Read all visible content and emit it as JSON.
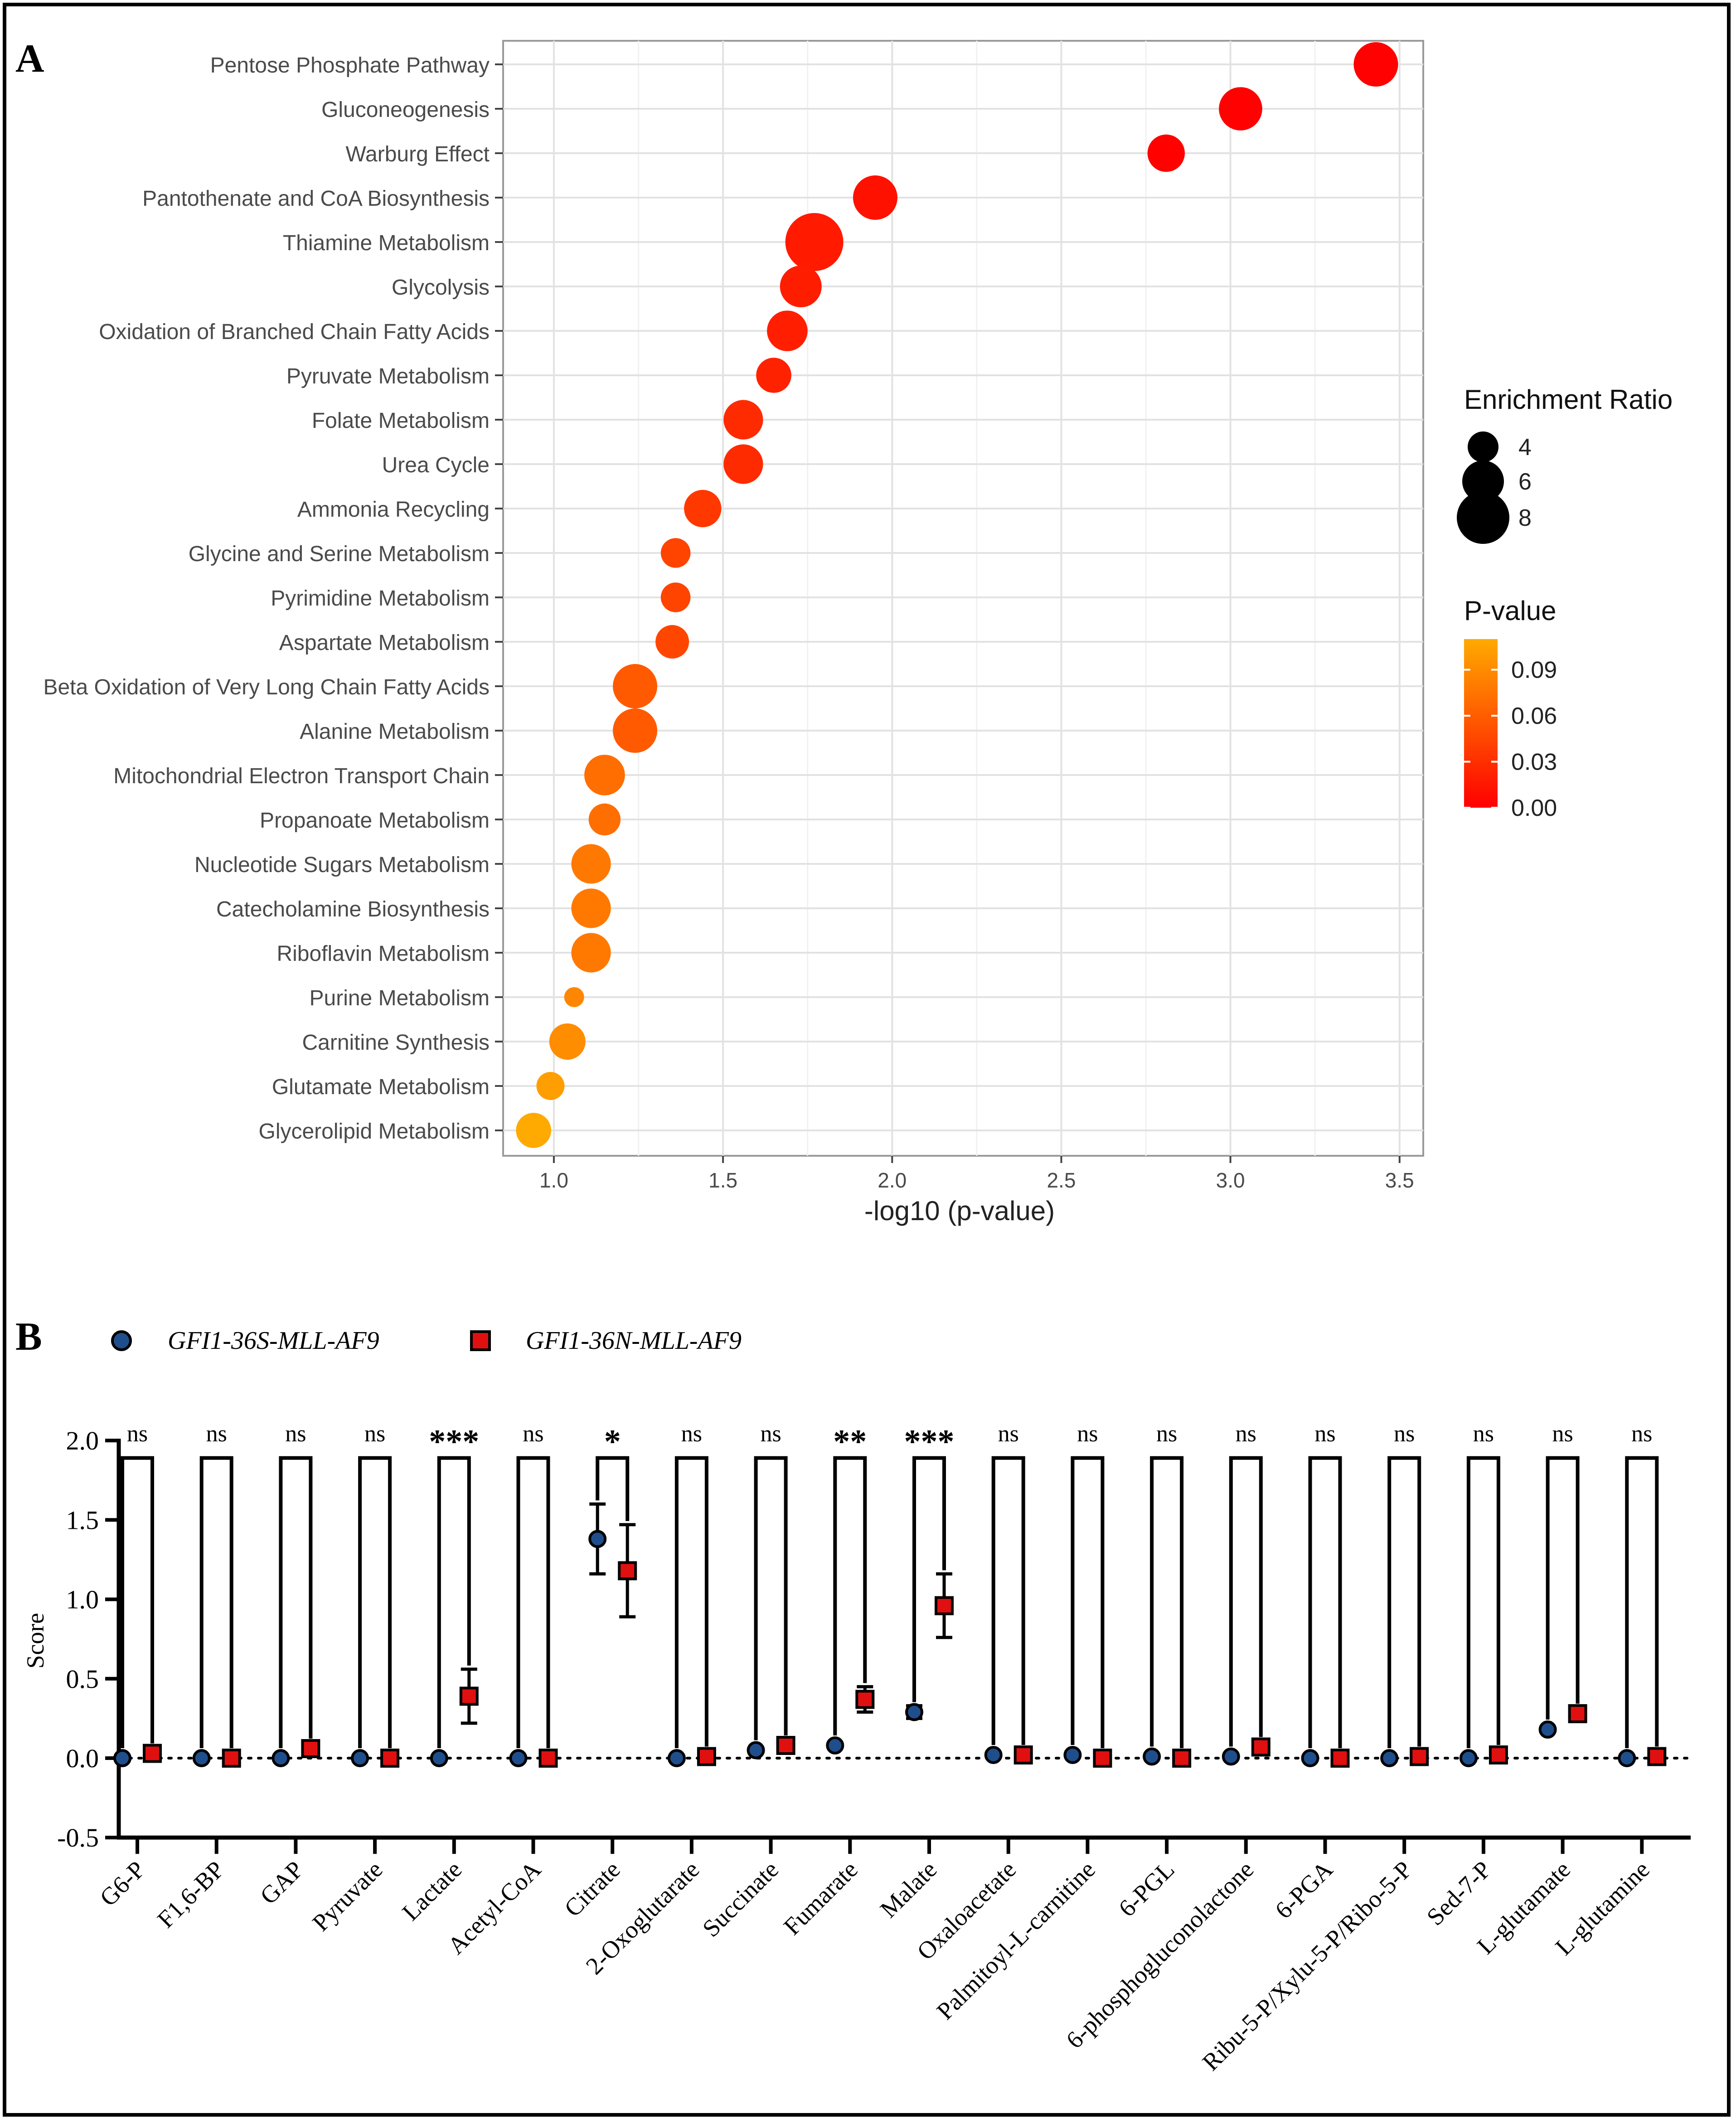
{
  "panel_labels": {
    "a": "A",
    "b": "B"
  },
  "colors": {
    "point_series_1": "#1f4e8c",
    "point_series_2": "#e01010",
    "pvalue_low": "#ff0000",
    "pvalue_high": "#ffaa00"
  },
  "chart_data": [
    {
      "type": "scatter",
      "panel": "A",
      "title": "",
      "xlabel": "-log10 (p-value)",
      "ylabel": "",
      "xlim": [
        0.85,
        3.57
      ],
      "x_ticks": [
        "1.0",
        "1.5",
        "2.0",
        "2.5",
        "3.0",
        "3.5"
      ],
      "grid": true,
      "categories": [
        "Pentose Phosphate Pathway",
        "Gluconeogenesis",
        "Warburg Effect",
        "Pantothenate and CoA Biosynthesis",
        "Thiamine Metabolism",
        "Glycolysis",
        "Oxidation of Branched Chain Fatty Acids",
        "Pyruvate Metabolism",
        "Folate Metabolism",
        "Urea Cycle",
        "Ammonia Recycling",
        "Glycine and Serine Metabolism",
        "Pyrimidine Metabolism",
        "Aspartate Metabolism",
        "Beta Oxidation of Very Long Chain Fatty Acids",
        "Alanine Metabolism",
        "Mitochondrial Electron Transport Chain",
        "Propanoate Metabolism",
        "Nucleotide Sugars Metabolism",
        "Catecholamine Biosynthesis",
        "Riboflavin Metabolism",
        "Purine Metabolism",
        "Carnitine Synthesis",
        "Glutamate Metabolism",
        "Glycerolipid Metabolism"
      ],
      "x": [
        3.43,
        3.03,
        2.81,
        1.95,
        1.77,
        1.73,
        1.69,
        1.65,
        1.56,
        1.56,
        1.44,
        1.36,
        1.36,
        1.35,
        1.24,
        1.24,
        1.15,
        1.15,
        1.11,
        1.11,
        1.11,
        1.06,
        1.04,
        0.99,
        0.94
      ],
      "enrichment_ratio": [
        6.5,
        6.3,
        5.2,
        6.5,
        9.0,
        6.0,
        5.8,
        4.8,
        5.6,
        5.6,
        5.2,
        3.8,
        3.8,
        4.5,
        6.5,
        6.5,
        5.8,
        4.2,
        5.6,
        5.6,
        5.6,
        2.0,
        5.0,
        3.5,
        4.8
      ],
      "p_value": [
        0.0004,
        0.0009,
        0.0015,
        0.011,
        0.017,
        0.019,
        0.02,
        0.022,
        0.028,
        0.028,
        0.036,
        0.044,
        0.044,
        0.045,
        0.058,
        0.058,
        0.071,
        0.071,
        0.078,
        0.078,
        0.078,
        0.087,
        0.091,
        0.102,
        0.115
      ],
      "legend_size": {
        "title": "Enrichment Ratio",
        "labels": [
          "4",
          "6",
          "8"
        ],
        "values": [
          4,
          6,
          8
        ]
      },
      "legend_color": {
        "title": "P-value",
        "labels": [
          "0.09",
          "0.06",
          "0.03",
          "0.00"
        ],
        "values": [
          0.09,
          0.06,
          0.03,
          0.0
        ],
        "range": [
          0.0,
          0.11
        ]
      }
    },
    {
      "type": "scatter",
      "panel": "B",
      "title": "",
      "xlabel": "",
      "ylabel": "Score",
      "ylim": [
        -0.5,
        2.0
      ],
      "y_ticks": [
        "-0.5",
        "0.0",
        "0.5",
        "1.0",
        "1.5",
        "2.0"
      ],
      "categories": [
        "G6-P",
        "F1,6-BP",
        "GAP",
        "Pyruvate",
        "Lactate",
        "Acetyl-CoA",
        "Citrate",
        "2-Oxoglutarate",
        "Succinate",
        "Fumarate",
        "Malate",
        "Oxaloacetate",
        "Palmitoyl-L-carnitine",
        "6-PGL",
        "6-phosphogluconolactone",
        "6-PGA",
        "Ribu-5-P/Xylu-5-P/Ribo-5-P",
        "Sed-7-P",
        "L-glutamate",
        "L-glutamine"
      ],
      "series": [
        {
          "name": "GFI1-36S-MLL-AF9",
          "values": [
            0.0,
            0.0,
            0.0,
            0.0,
            0.0,
            0.0,
            1.38,
            0.0,
            0.05,
            0.08,
            0.29,
            0.02,
            0.02,
            0.01,
            0.01,
            0.0,
            0.0,
            0.0,
            0.18,
            0.0
          ],
          "err": [
            0,
            0,
            0,
            0,
            0,
            0,
            0.22,
            0,
            0,
            0,
            0.04,
            0,
            0,
            0,
            0,
            0,
            0,
            0,
            0,
            0
          ]
        },
        {
          "name": "GFI1-36N-MLL-AF9",
          "values": [
            0.03,
            0.0,
            0.06,
            0.0,
            0.39,
            0.0,
            1.18,
            0.01,
            0.08,
            0.37,
            0.96,
            0.02,
            0.0,
            0.0,
            0.07,
            0.0,
            0.01,
            0.02,
            0.28,
            0.01
          ],
          "err": [
            0,
            0,
            0,
            0,
            0.17,
            0,
            0.29,
            0,
            0,
            0.08,
            0.2,
            0,
            0,
            0,
            0,
            0,
            0,
            0,
            0,
            0
          ]
        }
      ],
      "significance": [
        "ns",
        "ns",
        "ns",
        "ns",
        "***",
        "ns",
        "*",
        "ns",
        "ns",
        "**",
        "***",
        "ns",
        "ns",
        "ns",
        "ns",
        "ns",
        "ns",
        "ns",
        "ns",
        "ns"
      ]
    }
  ]
}
